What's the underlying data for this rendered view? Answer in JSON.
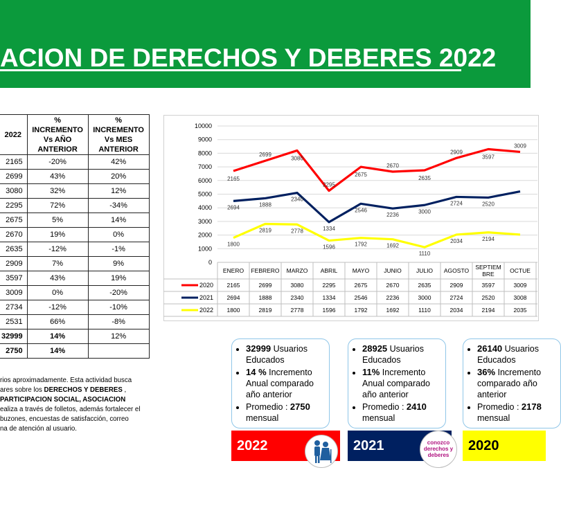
{
  "banner": {
    "title": "ACION DE DERECHOS Y DEBERES 2022"
  },
  "table": {
    "headers": [
      "2022",
      "% INCREMENTO Vs AÑO ANTERIOR",
      "% INCREMENTO Vs MES ANTERIOR"
    ],
    "rows": [
      [
        "2165",
        "-20%",
        "42%"
      ],
      [
        "2699",
        "43%",
        "20%"
      ],
      [
        "3080",
        "32%",
        "12%"
      ],
      [
        "2295",
        "72%",
        "-34%"
      ],
      [
        "2675",
        "5%",
        "14%"
      ],
      [
        "2670",
        "19%",
        "0%"
      ],
      [
        "2635",
        "-12%",
        "-1%"
      ],
      [
        "2909",
        "7%",
        "9%"
      ],
      [
        "3597",
        "43%",
        "19%"
      ],
      [
        "3009",
        "0%",
        "-20%"
      ],
      [
        "2734",
        "-12%",
        "-10%"
      ],
      [
        "2531",
        "66%",
        "-8%"
      ]
    ],
    "total": [
      "32999",
      "14%",
      "12%"
    ],
    "average": [
      "2750",
      "14%",
      ""
    ]
  },
  "description": {
    "line1": "rios aproximadamente. Esta actividad busca",
    "line2a": "ares sobre los ",
    "line2b": "DERECHOS Y DEBERES",
    "line2c": " ,",
    "line3": "PARTICIPACION SOCIAL, ASOCIACION",
    "line4": "ealiza a través de folletos, además fortalecer el",
    "line5": "buzones, encuestas de satisfacción, correo",
    "line6": "na de atención al usuario."
  },
  "chart_data": {
    "type": "line",
    "ylim": [
      0,
      10000
    ],
    "yticks": [
      "0",
      "1000",
      "2000",
      "3000",
      "4000",
      "5000",
      "6000",
      "7000",
      "8000",
      "9000",
      "10000"
    ],
    "categories": [
      "ENERO",
      "FEBRERO",
      "MARZO",
      "ABRIL",
      "MAYO",
      "JUNIO",
      "JULIO",
      "AGOSTO",
      "SEPTIEM BRE",
      "OCTUE"
    ],
    "series": [
      {
        "name": "2020",
        "color": "#ff0000",
        "values": [
          2165,
          2699,
          3080,
          2295,
          2675,
          2670,
          2635,
          2909,
          3597,
          3009
        ],
        "plotted": [
          6700,
          7450,
          8200,
          5250,
          7000,
          6650,
          6750,
          7650,
          8300,
          8100
        ],
        "labels": [
          "2165",
          "2699",
          "3080",
          "2295",
          "2675",
          "2670",
          "2635",
          "2909",
          "3597",
          "3009"
        ],
        "table": [
          "2165",
          "2699",
          "3080",
          "2295",
          "2675",
          "2670",
          "2635",
          "2909",
          "3597",
          "3009"
        ]
      },
      {
        "name": "2021",
        "color": "#002060",
        "values": [
          2694,
          1888,
          2340,
          1334,
          2546,
          2236,
          3000,
          2724,
          2520,
          3008
        ],
        "plotted": [
          4500,
          4700,
          5100,
          2950,
          4300,
          3950,
          4200,
          4800,
          4750,
          5200
        ],
        "labels": [
          "2694",
          "1888",
          "2340",
          "1334",
          "2546",
          "2236",
          "3000",
          "2724",
          "2520",
          ""
        ],
        "table": [
          "2694",
          "1888",
          "2340",
          "1334",
          "2546",
          "2236",
          "3000",
          "2724",
          "2520",
          "3008"
        ]
      },
      {
        "name": "2022",
        "color": "#ffff00",
        "values": [
          1800,
          2819,
          2778,
          1596,
          1792,
          1692,
          1110,
          2034,
          2194,
          2035
        ],
        "plotted": [
          1800,
          2819,
          2778,
          1596,
          1792,
          1692,
          1110,
          2034,
          2194,
          2035
        ],
        "labels": [
          "1800",
          "2819",
          "2778",
          "1596",
          "1792",
          "1692",
          "1110",
          "2034",
          "2194",
          ""
        ],
        "table": [
          "1800",
          "2819",
          "2778",
          "1596",
          "1792",
          "1692",
          "1110",
          "2034",
          "2194",
          "2035"
        ]
      }
    ]
  },
  "cards": [
    {
      "users": "32999",
      "users_label": " Usuarios Educados",
      "inc": "14 %",
      "inc_label": " Incremento Anual comparado año anterior",
      "avg_label": "Promedio : ",
      "avg": "2750",
      "avg_suffix": " mensual",
      "year": "2022",
      "bar_color": "#ff0000",
      "bar_text": "#ffffff"
    },
    {
      "users": "28925",
      "users_label": " Usuarios Educados",
      "inc": "11%",
      "inc_label": " Incremento Anual comparado año anterior",
      "avg_label": "Promedio : ",
      "avg": "2410",
      "avg_suffix": " mensual",
      "year": "2021",
      "bar_color": "#002060",
      "bar_text": "#ffffff"
    },
    {
      "users": "26140",
      "users_label": " Usuarios Educados",
      "inc": "36%",
      "inc_label": " Incremento comparado año anterior",
      "avg_label": "Promedio : ",
      "avg": "2178",
      "avg_suffix": " mensual",
      "year": "2020",
      "bar_color": "#ffff00",
      "bar_text": "#000000"
    }
  ],
  "logo": {
    "text": "conozco derechos y deberes"
  }
}
